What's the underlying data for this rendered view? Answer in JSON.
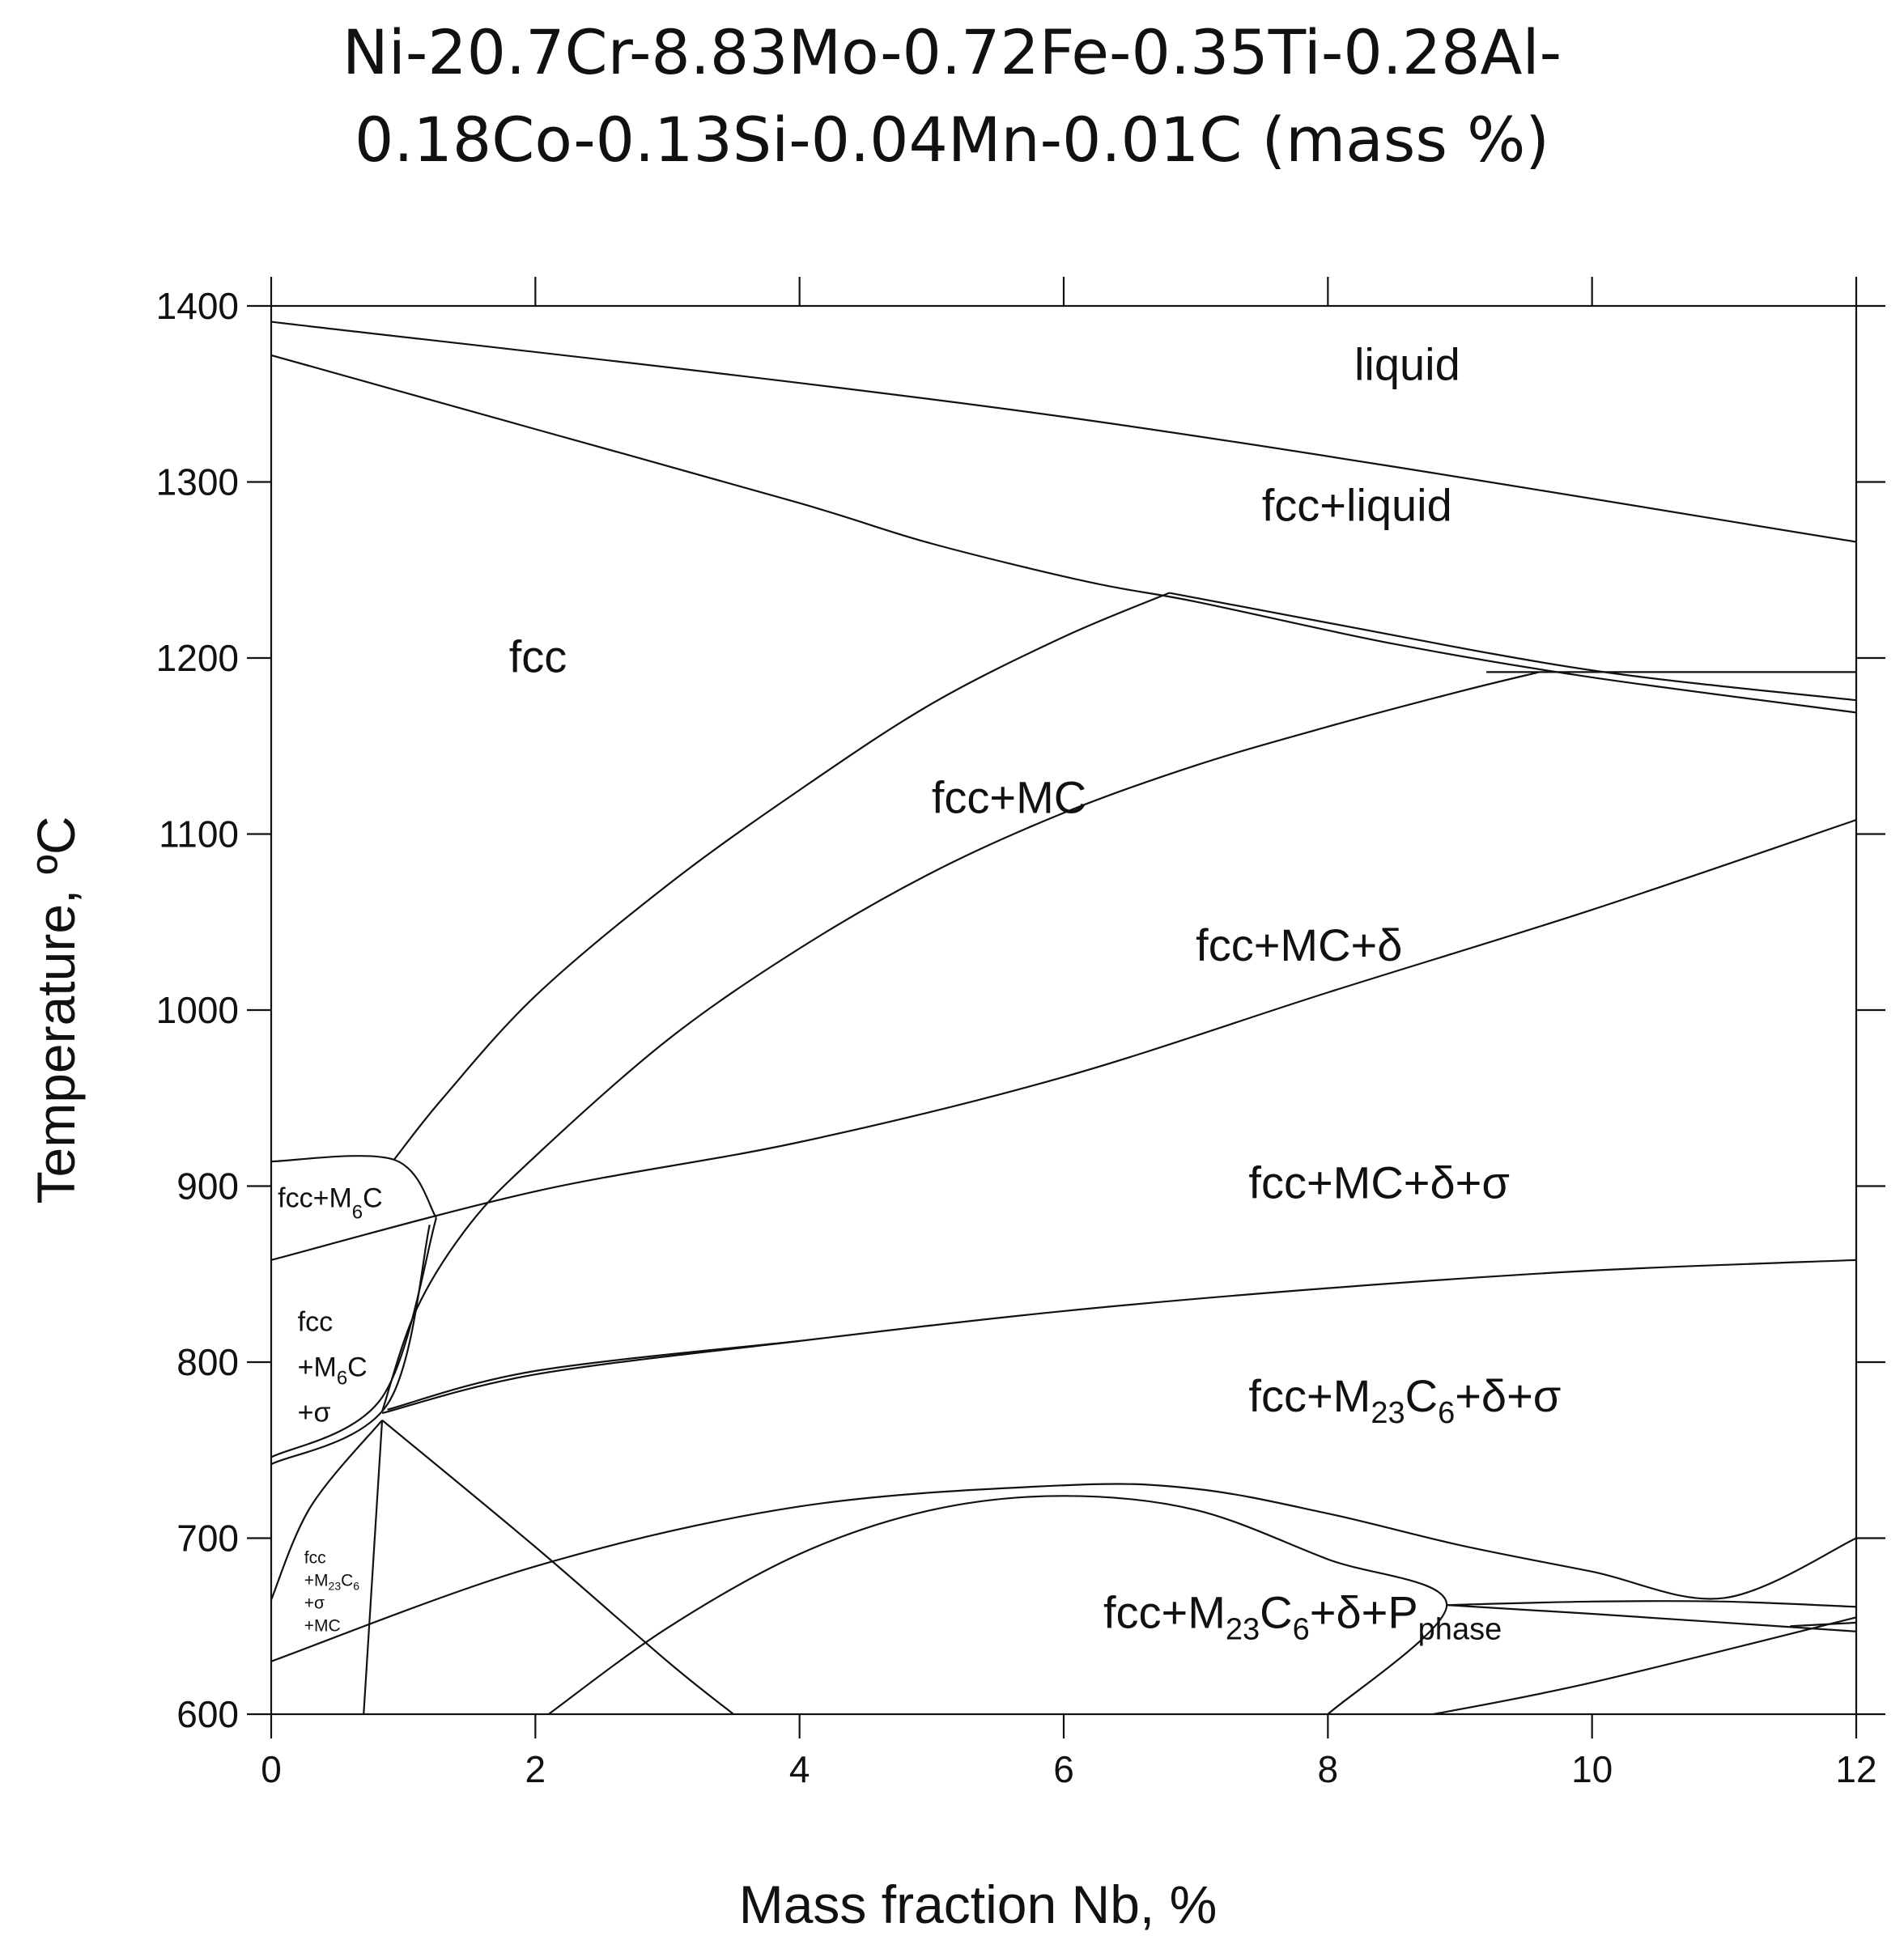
{
  "title": {
    "line1": "Ni-20.7Cr-8.83Mo-0.72Fe-0.35Ti-0.28Al-",
    "line2": "0.18Co-0.13Si-0.04Mn-0.01C (mass %)"
  },
  "chart_data": {
    "type": "phase-diagram",
    "xlabel": "Mass fraction Nb, %",
    "ylabel": "Temperature, ºC",
    "xlim": [
      0,
      12
    ],
    "ylim": [
      600,
      1400
    ],
    "x_ticks": [
      "0",
      "2",
      "4",
      "6",
      "8",
      "10",
      "12"
    ],
    "y_ticks": [
      "600",
      "700",
      "800",
      "900",
      "1000",
      "1100",
      "1200",
      "1300",
      "1400"
    ],
    "grid": false,
    "regions": [
      {
        "label": "liquid",
        "x": 8.2,
        "y": 1358
      },
      {
        "label": "fcc+liquid",
        "x": 7.5,
        "y": 1278
      },
      {
        "label": "fcc",
        "x": 1.8,
        "y": 1192
      },
      {
        "label": "fcc+MC",
        "x": 5.0,
        "y": 1112
      },
      {
        "label": "fcc+MC+δ",
        "x": 7.0,
        "y": 1028
      },
      {
        "label": "fcc+MC+δ+σ",
        "x": 7.4,
        "y": 893
      },
      {
        "label": "fcc+M23C6+δ+σ",
        "x": 7.4,
        "y": 772
      },
      {
        "label": "fcc+M23C6+δ+Pphase",
        "x": 6.3,
        "y": 649
      },
      {
        "label": "fcc+M6C",
        "x": 0.05,
        "y": 888
      },
      {
        "label": "fcc+M6C+σ",
        "x": 0.2,
        "y": 792
      },
      {
        "label": "fcc+M23C6+σ+MC",
        "x": 0.25,
        "y": 672
      }
    ],
    "boundaries": [
      {
        "name": "liquidus",
        "points": [
          [
            0,
            1391
          ],
          [
            6,
            1337
          ],
          [
            12,
            1266
          ]
        ]
      },
      {
        "name": "solidus",
        "points": [
          [
            0,
            1372
          ],
          [
            2,
            1330
          ],
          [
            4,
            1288
          ],
          [
            5,
            1265
          ],
          [
            6.2,
            1243
          ],
          [
            7,
            1232
          ],
          [
            8.5,
            1208
          ],
          [
            10,
            1189
          ],
          [
            12,
            1169
          ]
        ]
      },
      {
        "name": "solidus-2",
        "points": [
          [
            6.8,
            1237
          ],
          [
            8,
            1220
          ],
          [
            10,
            1193
          ],
          [
            12,
            1176
          ]
        ]
      },
      {
        "name": "mc-solvus",
        "points": [
          [
            0.93,
            915
          ],
          [
            1.3,
            950
          ],
          [
            2,
            1008
          ],
          [
            3,
            1071
          ],
          [
            4,
            1125
          ],
          [
            5,
            1174
          ],
          [
            6,
            1212
          ],
          [
            6.8,
            1237
          ]
        ]
      },
      {
        "name": "delta-solvus",
        "points": [
          [
            0.84,
            772
          ],
          [
            1.1,
            830
          ],
          [
            1.5,
            878
          ],
          [
            2,
            917
          ],
          [
            3,
            983
          ],
          [
            4,
            1035
          ],
          [
            5,
            1078
          ],
          [
            6,
            1112
          ],
          [
            7,
            1139
          ],
          [
            8,
            1161
          ],
          [
            9,
            1181
          ],
          [
            9.6,
            1192
          ]
        ]
      },
      {
        "name": "eutectic-line",
        "points": [
          [
            9.2,
            1192
          ],
          [
            12,
            1192
          ]
        ]
      },
      {
        "name": "sigma-solvus",
        "points": [
          [
            0,
            858
          ],
          [
            2,
            897
          ],
          [
            4,
            925
          ],
          [
            6,
            962
          ],
          [
            8,
            1010
          ],
          [
            10,
            1057
          ],
          [
            12,
            1108
          ]
        ]
      },
      {
        "name": "m6c-top",
        "points": [
          [
            0,
            914
          ],
          [
            0.93,
            915
          ],
          [
            1.25,
            882
          ]
        ]
      },
      {
        "name": "m6c-band-a",
        "points": [
          [
            1.25,
            882
          ],
          [
            0.84,
            780
          ],
          [
            0,
            746
          ]
        ]
      },
      {
        "name": "m6c-band-b",
        "points": [
          [
            1.2,
            878
          ],
          [
            0.88,
            776
          ],
          [
            0,
            742
          ]
        ]
      },
      {
        "name": "m23c6-upper",
        "points": [
          [
            0.84,
            771
          ],
          [
            2,
            793
          ],
          [
            4,
            812
          ],
          [
            6,
            829
          ],
          [
            8,
            842
          ],
          [
            10,
            852
          ],
          [
            12,
            858
          ]
        ]
      },
      {
        "name": "m23c6-upper-2",
        "points": [
          [
            0.88,
            773
          ],
          [
            2,
            795
          ],
          [
            4,
            812
          ]
        ]
      },
      {
        "name": "mc-low-solvus",
        "points": [
          [
            0,
            665
          ],
          [
            0.3,
            718
          ],
          [
            0.84,
            767
          ]
        ]
      },
      {
        "name": "vertical-near-1",
        "points": [
          [
            0.84,
            767
          ],
          [
            0.7,
            600
          ]
        ]
      },
      {
        "name": "mc-dissolve",
        "points": [
          [
            0.84,
            767
          ],
          [
            2,
            695
          ],
          [
            3,
            630
          ],
          [
            3.5,
            600
          ]
        ]
      },
      {
        "name": "p-upper",
        "points": [
          [
            0,
            630
          ],
          [
            2,
            684
          ],
          [
            4,
            718
          ],
          [
            6,
            730
          ],
          [
            7,
            728
          ],
          [
            8,
            714
          ],
          [
            9,
            696
          ],
          [
            10,
            681
          ],
          [
            11,
            666
          ],
          [
            12,
            700
          ]
        ]
      },
      {
        "name": "p-dome",
        "points": [
          [
            2.1,
            600
          ],
          [
            3,
            649
          ],
          [
            4,
            691
          ],
          [
            5,
            716
          ],
          [
            6,
            724
          ],
          [
            7,
            716
          ],
          [
            8,
            688
          ],
          [
            8.9,
            662
          ],
          [
            8,
            600
          ]
        ]
      },
      {
        "name": "p-right-a",
        "points": [
          [
            8.9,
            662
          ],
          [
            10,
            664
          ],
          [
            11,
            664
          ],
          [
            12,
            661
          ]
        ]
      },
      {
        "name": "p-right-b",
        "points": [
          [
            8.9,
            662
          ],
          [
            10,
            657
          ],
          [
            12,
            647
          ]
        ]
      },
      {
        "name": "p-lower",
        "points": [
          [
            8.8,
            600
          ],
          [
            10,
            618
          ],
          [
            12,
            655
          ]
        ]
      },
      {
        "name": "p-lower-b",
        "points": [
          [
            11.5,
            650
          ],
          [
            12,
            652
          ]
        ]
      }
    ]
  }
}
